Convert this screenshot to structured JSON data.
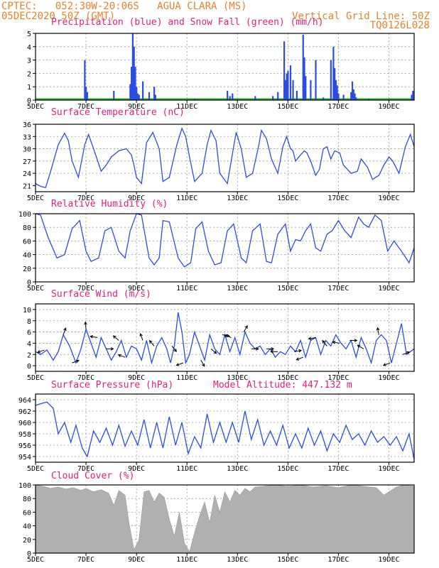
{
  "header": {
    "line1": "CPTEC:   052:30W-20:06S   AGUA CLARA (MS)",
    "line2": "05DEC2020 50Z (GMT)",
    "grid_note": "Vertical Grid Line: 50Z",
    "code": "TQ0126L028"
  },
  "colors": {
    "header": "#e8822a",
    "title": "#e0207a",
    "series": "#2b4de0",
    "snow": "#22aa22",
    "cloud": "#b0b0b0"
  },
  "chart_data": [
    {
      "id": "precip",
      "type": "bar",
      "title": "Precipitation (blue) and Snow Fall (green) (mm/h)",
      "ylim": [
        0,
        5
      ],
      "yticks": [
        0,
        1,
        2,
        3,
        4,
        5
      ],
      "xlim": [
        5,
        20
      ],
      "xticks": [
        "5DEC",
        "7DEC",
        "9DEC",
        "11DEC",
        "13DEC",
        "15DEC",
        "17DEC",
        "19DEC"
      ],
      "x": [
        6.95,
        7.0,
        7.05,
        8.1,
        8.75,
        8.8,
        8.85,
        8.9,
        8.95,
        9.0,
        9.05,
        9.1,
        9.25,
        9.5,
        9.7,
        9.75,
        11.3,
        12.6,
        12.7,
        12.8,
        13.7,
        14.4,
        14.6,
        14.85,
        14.9,
        14.95,
        15.0,
        15.1,
        15.2,
        15.35,
        15.6,
        15.65,
        15.7,
        15.9,
        16.1,
        16.4,
        16.7,
        16.8,
        16.85,
        16.9,
        16.95,
        17.0,
        17.2,
        17.5,
        17.55,
        17.6,
        17.65,
        17.7,
        18.2,
        19.9,
        19.95
      ],
      "values": [
        3.0,
        1.0,
        0.6,
        0.7,
        1.2,
        2.5,
        5.0,
        4.0,
        2.5,
        1.0,
        0.5,
        0.4,
        1.4,
        0.6,
        1.0,
        0.4,
        0.1,
        0.7,
        0.3,
        0.5,
        0.3,
        0.3,
        0.6,
        4.4,
        1.5,
        2.0,
        2.2,
        2.6,
        1.5,
        0.7,
        4.9,
        3.2,
        1.8,
        1.5,
        3.0,
        0.2,
        3.0,
        4.0,
        2.4,
        1.5,
        1.1,
        0.5,
        0.4,
        0.6,
        1.4,
        0.8,
        0.5,
        0.2,
        0.1,
        0.4,
        0.7
      ]
    },
    {
      "id": "temp",
      "type": "line",
      "title": "Surface Temperature (nC)",
      "ylim": [
        19.5,
        36
      ],
      "yticks": [
        21,
        24,
        27,
        30,
        33,
        36
      ],
      "xlim": [
        5,
        20
      ],
      "xticks": [
        "5DEC",
        "7DEC",
        "9DEC",
        "11DEC",
        "13DEC",
        "15DEC",
        "17DEC",
        "19DEC"
      ],
      "x": [
        5.0,
        5.2,
        5.4,
        5.6,
        5.9,
        6.15,
        6.3,
        6.45,
        6.7,
        6.95,
        7.1,
        7.3,
        7.6,
        7.8,
        8.0,
        8.3,
        8.6,
        8.8,
        8.9,
        9.0,
        9.2,
        9.4,
        9.65,
        9.9,
        10.05,
        10.3,
        10.6,
        10.8,
        10.95,
        11.1,
        11.3,
        11.6,
        11.8,
        11.95,
        12.15,
        12.3,
        12.6,
        12.85,
        12.95,
        13.15,
        13.35,
        13.6,
        13.85,
        13.95,
        14.15,
        14.35,
        14.6,
        14.8,
        14.95,
        15.1,
        15.2,
        15.3,
        15.5,
        15.65,
        15.75,
        15.9,
        16.1,
        16.25,
        16.4,
        16.55,
        16.7,
        16.85,
        17.05,
        17.2,
        17.5,
        17.75,
        17.9,
        18.15,
        18.35,
        18.6,
        18.8,
        19.0,
        19.15,
        19.4,
        19.65,
        19.85,
        20.0
      ],
      "values": [
        21.5,
        20.8,
        20.5,
        24.5,
        31.0,
        33.8,
        32.0,
        27.0,
        23.0,
        31.0,
        33.5,
        30.0,
        24.5,
        26.0,
        28.0,
        29.5,
        30.0,
        28.5,
        26.0,
        23.0,
        21.5,
        31.5,
        34.0,
        30.0,
        22.0,
        23.0,
        31.0,
        35.0,
        33.0,
        28.0,
        22.0,
        24.0,
        31.0,
        34.5,
        32.0,
        24.0,
        21.5,
        30.5,
        34.0,
        30.0,
        23.0,
        24.0,
        31.0,
        34.5,
        32.5,
        27.5,
        24.0,
        30.5,
        33.0,
        30.0,
        29.5,
        27.0,
        28.5,
        29.5,
        29.0,
        27.0,
        23.5,
        25.0,
        30.0,
        30.5,
        27.5,
        29.5,
        29.0,
        26.0,
        24.0,
        24.5,
        27.5,
        25.5,
        22.5,
        23.5,
        26.0,
        28.0,
        27.0,
        24.0,
        30.5,
        33.5,
        30.5
      ]
    },
    {
      "id": "rh",
      "type": "line",
      "title": "Relative Humidity (%)",
      "ylim": [
        0,
        100
      ],
      "yticks": [
        0,
        20,
        40,
        60,
        80,
        100
      ],
      "xlim": [
        5,
        20
      ],
      "xticks": [
        "5DEC",
        "7DEC",
        "9DEC",
        "11DEC",
        "13DEC",
        "15DEC",
        "17DEC",
        "19DEC"
      ],
      "x": [
        5.0,
        5.2,
        5.5,
        5.85,
        6.15,
        6.45,
        6.75,
        7.0,
        7.2,
        7.5,
        7.75,
        8.0,
        8.3,
        8.55,
        8.75,
        9.0,
        9.2,
        9.5,
        9.7,
        9.9,
        10.05,
        10.3,
        10.65,
        10.9,
        11.15,
        11.35,
        11.6,
        11.85,
        12.1,
        12.35,
        12.6,
        12.85,
        13.15,
        13.35,
        13.6,
        13.9,
        14.15,
        14.35,
        14.6,
        14.9,
        15.1,
        15.3,
        15.5,
        15.7,
        15.9,
        16.1,
        16.3,
        16.55,
        16.75,
        17.0,
        17.25,
        17.5,
        17.8,
        18.0,
        18.2,
        18.45,
        18.7,
        18.95,
        19.2,
        19.5,
        19.8,
        20.0
      ],
      "values": [
        100,
        98,
        65,
        35,
        40,
        78,
        90,
        45,
        30,
        35,
        75,
        80,
        45,
        35,
        75,
        100,
        98,
        35,
        25,
        35,
        90,
        88,
        35,
        22,
        28,
        78,
        88,
        45,
        25,
        28,
        75,
        85,
        35,
        28,
        75,
        85,
        30,
        28,
        70,
        85,
        45,
        62,
        60,
        75,
        85,
        50,
        45,
        70,
        75,
        90,
        75,
        65,
        95,
        85,
        80,
        98,
        90,
        45,
        60,
        45,
        28,
        50
      ]
    },
    {
      "id": "wind",
      "type": "line",
      "title": "Surface Wind (m/s)",
      "ylim": [
        -1,
        11
      ],
      "yticks": [
        0,
        2,
        4,
        6,
        8,
        10
      ],
      "xlim": [
        5,
        20
      ],
      "xticks": [
        "5DEC",
        "7DEC",
        "9DEC",
        "11DEC",
        "13DEC",
        "15DEC",
        "17DEC",
        "19DEC"
      ],
      "x": [
        5.0,
        5.2,
        5.45,
        5.7,
        5.9,
        6.1,
        6.35,
        6.6,
        6.8,
        7.0,
        7.2,
        7.4,
        7.6,
        7.8,
        8.0,
        8.2,
        8.4,
        8.6,
        8.8,
        9.0,
        9.2,
        9.4,
        9.6,
        9.8,
        10.0,
        10.2,
        10.35,
        10.5,
        10.65,
        10.8,
        10.95,
        11.1,
        11.3,
        11.5,
        11.7,
        11.9,
        12.1,
        12.3,
        12.5,
        12.7,
        12.9,
        13.1,
        13.3,
        13.5,
        13.7,
        13.9,
        14.1,
        14.3,
        14.5,
        14.7,
        14.9,
        15.1,
        15.3,
        15.5,
        15.7,
        15.9,
        16.1,
        16.3,
        16.5,
        16.7,
        16.9,
        17.1,
        17.3,
        17.5,
        17.7,
        17.9,
        18.1,
        18.3,
        18.5,
        18.7,
        18.9,
        19.1,
        19.3,
        19.5,
        19.7,
        20.0
      ],
      "values": [
        2.5,
        2.0,
        2.8,
        1.0,
        2.5,
        5.5,
        3.5,
        0.5,
        3.0,
        6.5,
        4.0,
        1.5,
        5.0,
        3.0,
        1.0,
        2.5,
        4.5,
        1.5,
        3.5,
        3.0,
        1.0,
        4.5,
        0.5,
        3.5,
        5.0,
        3.0,
        0.5,
        3.5,
        9.5,
        6.0,
        0.5,
        2.0,
        6.0,
        3.5,
        1.0,
        5.5,
        3.0,
        2.0,
        5.5,
        2.5,
        5.0,
        2.0,
        6.0,
        4.0,
        3.0,
        3.5,
        2.0,
        3.0,
        1.5,
        2.5,
        2.0,
        3.5,
        2.5,
        4.5,
        1.5,
        4.5,
        5.0,
        2.0,
        4.5,
        3.5,
        5.5,
        4.0,
        3.0,
        4.5,
        1.5,
        5.0,
        3.0,
        0.5,
        4.5,
        5.5,
        4.5,
        0.5,
        4.0,
        7.5,
        2.0,
        3.0
      ]
    },
    {
      "id": "pressure",
      "type": "line",
      "title": "Surface Pressure (hPa)",
      "altitude_label": "Model Altitude: 447.132 m",
      "ylim": [
        953,
        965
      ],
      "yticks": [
        954,
        956,
        958,
        960,
        962,
        964
      ],
      "xlim": [
        5,
        20
      ],
      "xticks": [
        "5DEC",
        "7DEC",
        "9DEC",
        "11DEC",
        "13DEC",
        "15DEC",
        "17DEC",
        "19DEC"
      ],
      "x": [
        5.0,
        5.2,
        5.45,
        5.7,
        5.9,
        6.15,
        6.4,
        6.6,
        6.85,
        7.05,
        7.3,
        7.55,
        7.8,
        8.05,
        8.3,
        8.55,
        8.8,
        9.05,
        9.3,
        9.55,
        9.8,
        10.05,
        10.3,
        10.55,
        10.8,
        11.05,
        11.3,
        11.55,
        11.8,
        12.05,
        12.3,
        12.55,
        12.8,
        13.05,
        13.3,
        13.55,
        13.8,
        14.05,
        14.3,
        14.55,
        14.8,
        15.05,
        15.3,
        15.55,
        15.8,
        16.05,
        16.3,
        16.55,
        16.8,
        17.05,
        17.3,
        17.55,
        17.8,
        18.05,
        18.3,
        18.55,
        18.8,
        19.05,
        19.3,
        19.55,
        19.8,
        20.0
      ],
      "values": [
        963.0,
        963.3,
        963.6,
        962.5,
        958.0,
        960.0,
        956.5,
        959.5,
        955.5,
        954.0,
        958.5,
        956.5,
        959.0,
        956.0,
        959.5,
        955.8,
        958.5,
        956.0,
        960.5,
        955.5,
        960.0,
        955.5,
        961.0,
        956.0,
        960.0,
        954.5,
        957.5,
        955.5,
        961.5,
        956.5,
        960.0,
        956.5,
        960.0,
        956.5,
        962.0,
        957.0,
        960.5,
        956.0,
        958.5,
        956.0,
        959.5,
        955.5,
        958.0,
        955.5,
        959.0,
        956.0,
        958.5,
        955.0,
        958.0,
        956.5,
        959.5,
        957.0,
        958.0,
        956.0,
        958.5,
        956.5,
        957.5,
        956.0,
        957.5,
        955.0,
        958.0,
        953.5
      ]
    },
    {
      "id": "cloud",
      "type": "area",
      "title": "Cloud Cover (%)",
      "ylim": [
        0,
        100
      ],
      "yticks": [
        0,
        20,
        40,
        60,
        80,
        100
      ],
      "xlim": [
        5,
        20
      ],
      "xticks": [
        "5DEC",
        "7DEC",
        "9DEC",
        "11DEC",
        "13DEC",
        "15DEC",
        "17DEC",
        "19DEC"
      ],
      "x": [
        5.0,
        5.3,
        5.6,
        5.9,
        6.2,
        6.5,
        6.8,
        7.0,
        7.3,
        7.6,
        7.9,
        8.1,
        8.3,
        8.55,
        8.7,
        8.9,
        9.1,
        9.3,
        9.5,
        9.7,
        9.9,
        10.1,
        10.3,
        10.5,
        10.7,
        10.9,
        11.1,
        11.3,
        11.5,
        11.7,
        11.9,
        12.1,
        12.3,
        12.5,
        12.7,
        12.9,
        13.1,
        13.3,
        13.5,
        13.7,
        14.0,
        14.5,
        15.0,
        15.5,
        16.0,
        16.5,
        17.0,
        17.5,
        18.0,
        18.5,
        18.8,
        19.0,
        19.3,
        19.6,
        20.0
      ],
      "values": [
        100,
        98,
        95,
        97,
        94,
        96,
        92,
        95,
        90,
        93,
        88,
        70,
        92,
        85,
        45,
        5,
        20,
        90,
        92,
        75,
        88,
        82,
        50,
        25,
        60,
        15,
        2,
        30,
        55,
        75,
        45,
        85,
        60,
        90,
        75,
        92,
        85,
        95,
        90,
        97,
        98,
        100,
        98,
        100,
        97,
        99,
        96,
        100,
        98,
        96,
        85,
        90,
        97,
        100,
        98
      ]
    }
  ],
  "wind_arrows": [
    {
      "x": 5.35,
      "dir": 200
    },
    {
      "x": 6.1,
      "dir": 70
    },
    {
      "x": 6.45,
      "dir": 20
    },
    {
      "x": 7.0,
      "dir": 95
    },
    {
      "x": 7.45,
      "dir": 170
    },
    {
      "x": 7.8,
      "dir": 0
    },
    {
      "x": 8.3,
      "dir": 140
    },
    {
      "x": 8.55,
      "dir": 160
    },
    {
      "x": 9.25,
      "dir": 110
    },
    {
      "x": 9.7,
      "dir": 130
    },
    {
      "x": 10.4,
      "dir": 310
    },
    {
      "x": 10.85,
      "dir": 200
    },
    {
      "x": 11.55,
      "dir": 300
    },
    {
      "x": 11.95,
      "dir": 320
    },
    {
      "x": 12.4,
      "dir": 350
    },
    {
      "x": 12.75,
      "dir": 160
    },
    {
      "x": 13.25,
      "dir": 60
    },
    {
      "x": 13.55,
      "dir": 0
    },
    {
      "x": 14.15,
      "dir": 0
    },
    {
      "x": 14.6,
      "dir": 180
    },
    {
      "x": 15.25,
      "dir": 10
    },
    {
      "x": 15.6,
      "dir": 200
    },
    {
      "x": 16.1,
      "dir": 190
    },
    {
      "x": 16.55,
      "dir": 130
    },
    {
      "x": 17.05,
      "dir": 170
    },
    {
      "x": 17.45,
      "dir": 0
    },
    {
      "x": 18.0,
      "dir": 150
    },
    {
      "x": 18.6,
      "dir": 100
    },
    {
      "x": 19.05,
      "dir": 200
    },
    {
      "x": 19.55,
      "dir": 20
    }
  ]
}
